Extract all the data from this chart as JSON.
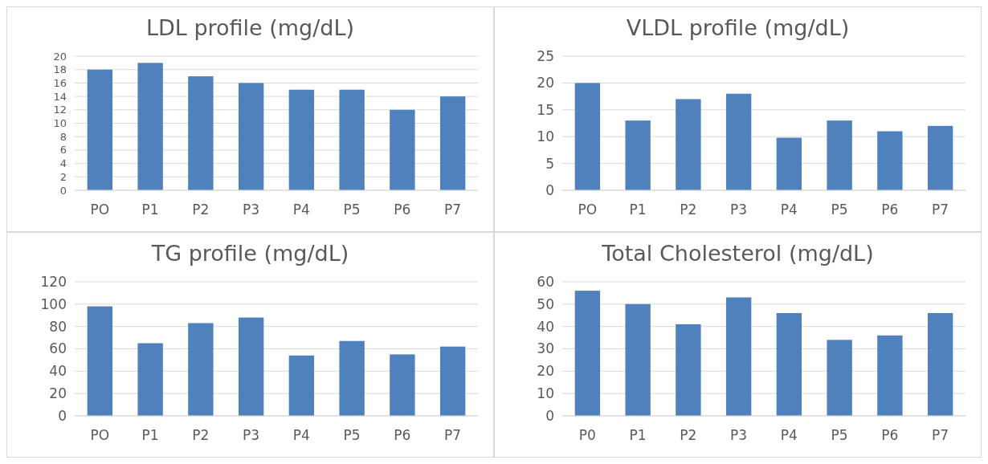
{
  "chart_data": [
    {
      "type": "bar",
      "title": "LDL profile (mg/dL)",
      "categories": [
        "PO",
        "P1",
        "P2",
        "P3",
        "P4",
        "P5",
        "P6",
        "P7"
      ],
      "values": [
        18,
        19,
        17,
        16,
        15,
        15,
        12,
        14
      ],
      "color": "#4f81bd",
      "ylim": [
        0,
        20
      ],
      "yticks": [
        0,
        2,
        4,
        6,
        8,
        10,
        12,
        14,
        16,
        18,
        20
      ],
      "grid": "y"
    },
    {
      "type": "bar",
      "title": "VLDL profile (mg/dL)",
      "categories": [
        "PO",
        "P1",
        "P2",
        "P3",
        "P4",
        "P5",
        "P6",
        "P7"
      ],
      "values": [
        20,
        13,
        17,
        18,
        9.8,
        13,
        11,
        12
      ],
      "color": "#4f81bd",
      "ylim": [
        0,
        25
      ],
      "yticks": [
        0,
        5,
        10,
        15,
        20,
        25
      ],
      "grid": "y"
    },
    {
      "type": "bar",
      "title": "TG profile (mg/dL)",
      "categories": [
        "PO",
        "P1",
        "P2",
        "P3",
        "P4",
        "P5",
        "P6",
        "P7"
      ],
      "values": [
        98,
        65,
        83,
        88,
        54,
        67,
        55,
        62
      ],
      "color": "#4f81bd",
      "ylim": [
        0,
        120
      ],
      "yticks": [
        0,
        20,
        40,
        60,
        80,
        100,
        120
      ],
      "grid": "y"
    },
    {
      "type": "bar",
      "title": "Total Cholesterol (mg/dL)",
      "categories": [
        "P0",
        "P1",
        "P2",
        "P3",
        "P4",
        "P5",
        "P6",
        "P7"
      ],
      "values": [
        56,
        50,
        41,
        53,
        46,
        34,
        36,
        46
      ],
      "color": "#4f81bd",
      "ylim": [
        0,
        60
      ],
      "yticks": [
        0,
        10,
        20,
        30,
        40,
        50,
        60
      ],
      "grid": "y"
    }
  ]
}
